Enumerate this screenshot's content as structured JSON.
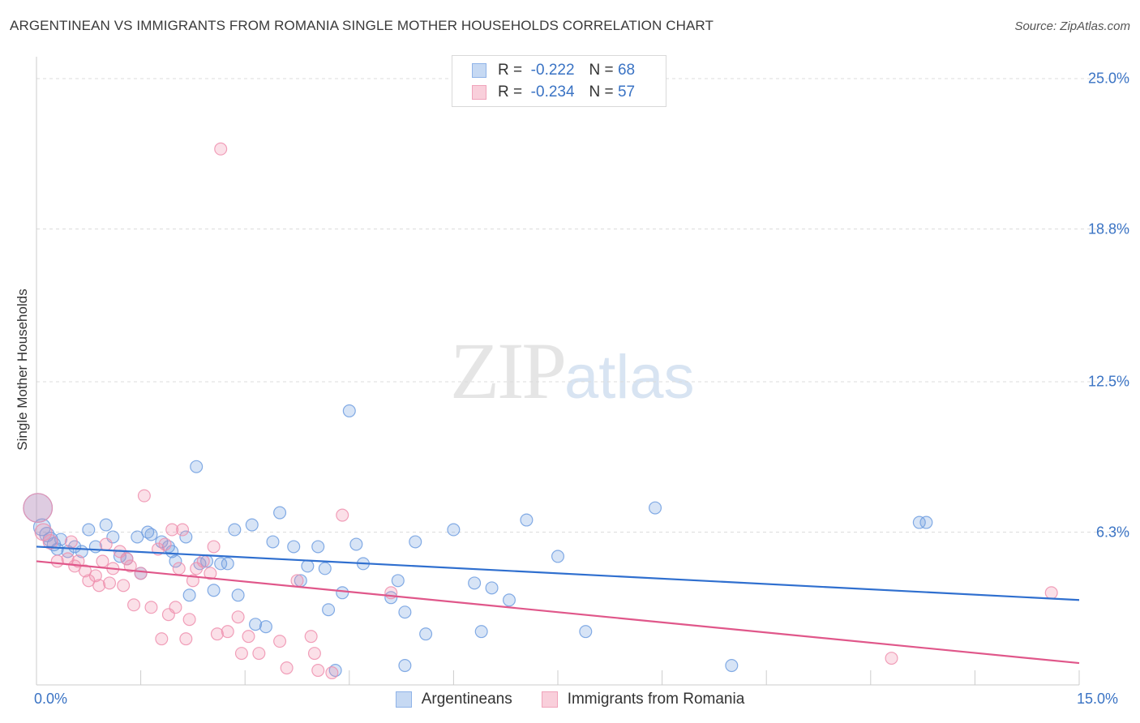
{
  "title": "ARGENTINEAN VS IMMIGRANTS FROM ROMANIA SINGLE MOTHER HOUSEHOLDS CORRELATION CHART",
  "source": "Source: ZipAtlas.com",
  "watermark": {
    "zip": "ZIP",
    "atlas": "atlas"
  },
  "legend_top": [
    {
      "r_label": "R =",
      "r_value": "-0.222",
      "n_label": "N =",
      "n_value": "68",
      "color": "#8fb3e8",
      "fill": "#c6d9f3"
    },
    {
      "r_label": "R =",
      "r_value": "-0.234",
      "n_label": "N =",
      "n_value": "57",
      "color": "#f0a3bb",
      "fill": "#f9cfdb"
    }
  ],
  "legend_bottom": [
    {
      "label": "Argentineans",
      "color": "#8fb3e8",
      "fill": "#c6d9f3"
    },
    {
      "label": "Immigrants from Romania",
      "color": "#f0a3bb",
      "fill": "#f9cfdb"
    }
  ],
  "colors": {
    "blue_line": "#2f6fcf",
    "pink_line": "#e0578a",
    "blue_point": "#6f9ee0",
    "pink_point": "#ef8fae",
    "grid": "#dcdcdc",
    "axis_text": "#3a73c4"
  },
  "chart_data": {
    "type": "scatter",
    "title": "ARGENTINEAN VS IMMIGRANTS FROM ROMANIA SINGLE MOTHER HOUSEHOLDS CORRELATION CHART",
    "xlabel": "",
    "ylabel": "Single Mother Households",
    "xlim": [
      0,
      15
    ],
    "ylim": [
      0,
      26
    ],
    "x_tick_labels": {
      "min": "0.0%",
      "max": "15.0%"
    },
    "y_ticks": [
      {
        "value": 6.3,
        "label": "6.3%"
      },
      {
        "value": 12.5,
        "label": "12.5%"
      },
      {
        "value": 18.8,
        "label": "18.8%"
      },
      {
        "value": 25.0,
        "label": "25.0%"
      }
    ],
    "grid": true,
    "legend_position": "top-center",
    "series": [
      {
        "name": "Argentineans",
        "trend": {
          "x0": 0,
          "y0": 5.7,
          "x1": 15,
          "y1": 3.5
        },
        "points": [
          [
            0.02,
            7.3,
            24
          ],
          [
            0.08,
            6.5,
            14
          ],
          [
            0.15,
            6.2,
            12
          ],
          [
            0.2,
            6.0,
            12
          ],
          [
            0.25,
            5.8,
            11
          ],
          [
            0.3,
            5.6,
            10
          ],
          [
            0.35,
            6.0,
            10
          ],
          [
            0.45,
            5.5,
            10
          ],
          [
            0.55,
            5.7,
            10
          ],
          [
            0.65,
            5.5,
            10
          ],
          [
            0.75,
            6.4,
            10
          ],
          [
            0.85,
            5.7,
            10
          ],
          [
            1.0,
            6.6,
            10
          ],
          [
            1.1,
            6.1,
            10
          ],
          [
            1.2,
            5.3,
            10
          ],
          [
            1.3,
            5.2,
            10
          ],
          [
            1.45,
            6.1,
            10
          ],
          [
            1.5,
            4.6,
            10
          ],
          [
            1.6,
            6.3,
            10
          ],
          [
            1.65,
            6.2,
            10
          ],
          [
            1.8,
            5.9,
            10
          ],
          [
            1.9,
            5.7,
            10
          ],
          [
            1.95,
            5.5,
            10
          ],
          [
            2.0,
            5.1,
            10
          ],
          [
            2.15,
            6.1,
            10
          ],
          [
            2.2,
            3.7,
            10
          ],
          [
            2.3,
            9.0,
            10
          ],
          [
            2.35,
            5.0,
            10
          ],
          [
            2.45,
            5.1,
            10
          ],
          [
            2.55,
            3.9,
            10
          ],
          [
            2.65,
            5.0,
            10
          ],
          [
            2.75,
            5.0,
            10
          ],
          [
            2.85,
            6.4,
            10
          ],
          [
            2.9,
            3.7,
            10
          ],
          [
            3.1,
            6.6,
            10
          ],
          [
            3.15,
            2.5,
            10
          ],
          [
            3.3,
            2.4,
            10
          ],
          [
            3.4,
            5.9,
            10
          ],
          [
            3.5,
            7.1,
            10
          ],
          [
            3.7,
            5.7,
            10
          ],
          [
            3.8,
            4.3,
            10
          ],
          [
            3.9,
            4.9,
            10
          ],
          [
            4.05,
            5.7,
            10
          ],
          [
            4.15,
            4.8,
            10
          ],
          [
            4.2,
            3.1,
            10
          ],
          [
            4.3,
            0.6,
            10
          ],
          [
            4.4,
            3.8,
            10
          ],
          [
            4.5,
            11.3,
            10
          ],
          [
            4.6,
            5.8,
            10
          ],
          [
            4.7,
            5.0,
            10
          ],
          [
            5.1,
            3.6,
            10
          ],
          [
            5.2,
            4.3,
            10
          ],
          [
            5.3,
            3.0,
            10
          ],
          [
            5.45,
            5.9,
            10
          ],
          [
            5.6,
            2.1,
            10
          ],
          [
            6.0,
            6.4,
            10
          ],
          [
            6.3,
            4.2,
            10
          ],
          [
            6.4,
            2.2,
            10
          ],
          [
            6.55,
            4.0,
            10
          ],
          [
            6.8,
            3.5,
            10
          ],
          [
            7.05,
            6.8,
            10
          ],
          [
            7.5,
            5.3,
            10
          ],
          [
            7.9,
            2.2,
            10
          ],
          [
            8.9,
            7.3,
            10
          ],
          [
            10.0,
            0.8,
            10
          ],
          [
            12.7,
            6.7,
            10
          ],
          [
            12.8,
            6.7,
            10
          ],
          [
            5.3,
            0.8,
            10
          ]
        ]
      },
      {
        "name": "Immigrants from Romania",
        "trend": {
          "x0": 0,
          "y0": 5.1,
          "x1": 15,
          "y1": 0.9
        },
        "points": [
          [
            0.02,
            7.3,
            24
          ],
          [
            0.1,
            6.3,
            14
          ],
          [
            0.2,
            5.9,
            12
          ],
          [
            0.3,
            5.1,
            10
          ],
          [
            0.45,
            5.2,
            10
          ],
          [
            0.5,
            5.9,
            10
          ],
          [
            0.6,
            5.1,
            10
          ],
          [
            0.7,
            4.7,
            10
          ],
          [
            0.75,
            4.3,
            10
          ],
          [
            0.85,
            4.5,
            10
          ],
          [
            0.9,
            4.1,
            10
          ],
          [
            0.95,
            5.1,
            10
          ],
          [
            1.0,
            5.8,
            10
          ],
          [
            1.05,
            4.2,
            10
          ],
          [
            1.1,
            4.8,
            10
          ],
          [
            1.2,
            5.5,
            10
          ],
          [
            1.3,
            5.2,
            10
          ],
          [
            1.35,
            4.9,
            10
          ],
          [
            1.4,
            3.3,
            10
          ],
          [
            1.5,
            4.6,
            10
          ],
          [
            1.55,
            7.8,
            10
          ],
          [
            1.65,
            3.2,
            10
          ],
          [
            1.75,
            5.6,
            10
          ],
          [
            1.8,
            1.9,
            10
          ],
          [
            1.85,
            5.8,
            10
          ],
          [
            1.9,
            2.9,
            10
          ],
          [
            1.95,
            6.4,
            10
          ],
          [
            2.0,
            3.2,
            10
          ],
          [
            2.05,
            4.8,
            10
          ],
          [
            2.1,
            6.4,
            10
          ],
          [
            2.15,
            1.9,
            10
          ],
          [
            2.2,
            2.7,
            10
          ],
          [
            2.25,
            4.3,
            10
          ],
          [
            2.3,
            4.8,
            10
          ],
          [
            2.4,
            5.1,
            10
          ],
          [
            2.5,
            4.6,
            10
          ],
          [
            2.55,
            5.7,
            10
          ],
          [
            2.6,
            2.1,
            10
          ],
          [
            2.65,
            22.1,
            10
          ],
          [
            2.75,
            2.2,
            10
          ],
          [
            2.9,
            2.8,
            10
          ],
          [
            2.95,
            1.3,
            10
          ],
          [
            3.05,
            2.0,
            10
          ],
          [
            3.2,
            1.3,
            10
          ],
          [
            3.5,
            1.8,
            10
          ],
          [
            3.6,
            0.7,
            10
          ],
          [
            3.75,
            4.3,
            10
          ],
          [
            3.95,
            2.0,
            10
          ],
          [
            4.0,
            1.3,
            10
          ],
          [
            4.05,
            0.6,
            10
          ],
          [
            4.25,
            0.5,
            10
          ],
          [
            4.4,
            7.0,
            10
          ],
          [
            5.1,
            3.8,
            10
          ],
          [
            12.3,
            1.1,
            10
          ],
          [
            14.6,
            3.8,
            10
          ],
          [
            1.25,
            4.1,
            10
          ],
          [
            0.55,
            4.9,
            10
          ]
        ]
      }
    ]
  }
}
